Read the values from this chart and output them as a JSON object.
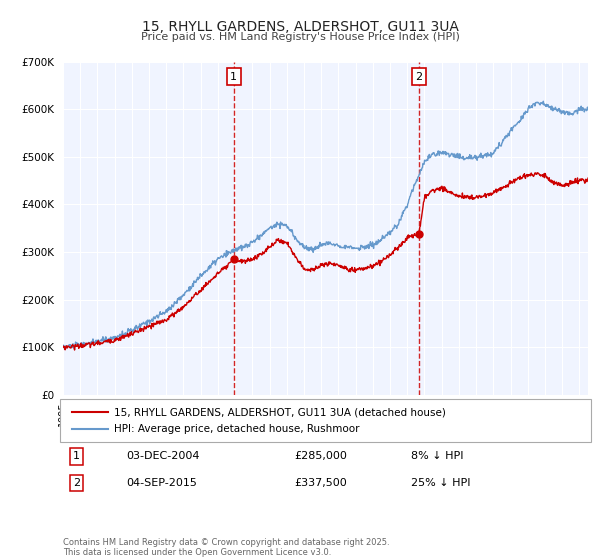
{
  "title": "15, RHYLL GARDENS, ALDERSHOT, GU11 3UA",
  "subtitle": "Price paid vs. HM Land Registry's House Price Index (HPI)",
  "legend_label_red": "15, RHYLL GARDENS, ALDERSHOT, GU11 3UA (detached house)",
  "legend_label_blue": "HPI: Average price, detached house, Rushmoor",
  "footer": "Contains HM Land Registry data © Crown copyright and database right 2025.\nThis data is licensed under the Open Government Licence v3.0.",
  "annotation1_label": "1",
  "annotation1_date": "03-DEC-2004",
  "annotation1_price": "£285,000",
  "annotation1_hpi": "8% ↓ HPI",
  "annotation2_label": "2",
  "annotation2_date": "04-SEP-2015",
  "annotation2_price": "£337,500",
  "annotation2_hpi": "25% ↓ HPI",
  "event1_x": 2004.92,
  "event1_y": 285000,
  "event2_x": 2015.67,
  "event2_y": 337500,
  "ylim": [
    0,
    700000
  ],
  "xlim": [
    1995,
    2025.5
  ],
  "yticks": [
    0,
    100000,
    200000,
    300000,
    400000,
    500000,
    600000,
    700000
  ],
  "ytick_labels": [
    "£0",
    "£100K",
    "£200K",
    "£300K",
    "£400K",
    "£500K",
    "£600K",
    "£700K"
  ],
  "red_color": "#cc0000",
  "blue_color": "#6699cc",
  "bg_color": "#f0f4ff",
  "grid_color": "#ffffff",
  "hpi_waypoints": [
    [
      1995.0,
      100000
    ],
    [
      1996.0,
      105000
    ],
    [
      1997.0,
      112000
    ],
    [
      1998.0,
      120000
    ],
    [
      1999.0,
      135000
    ],
    [
      2000.0,
      155000
    ],
    [
      2001.0,
      175000
    ],
    [
      2002.0,
      210000
    ],
    [
      2003.0,
      250000
    ],
    [
      2004.0,
      285000
    ],
    [
      2004.5,
      295000
    ],
    [
      2005.0,
      305000
    ],
    [
      2005.5,
      310000
    ],
    [
      2006.0,
      320000
    ],
    [
      2006.5,
      335000
    ],
    [
      2007.0,
      350000
    ],
    [
      2007.5,
      360000
    ],
    [
      2008.0,
      355000
    ],
    [
      2008.5,
      330000
    ],
    [
      2009.0,
      310000
    ],
    [
      2009.5,
      305000
    ],
    [
      2010.0,
      315000
    ],
    [
      2010.5,
      318000
    ],
    [
      2011.0,
      315000
    ],
    [
      2011.5,
      310000
    ],
    [
      2012.0,
      308000
    ],
    [
      2012.5,
      310000
    ],
    [
      2013.0,
      315000
    ],
    [
      2013.5,
      325000
    ],
    [
      2014.0,
      340000
    ],
    [
      2014.5,
      360000
    ],
    [
      2015.0,
      400000
    ],
    [
      2015.5,
      450000
    ],
    [
      2015.67,
      460000
    ],
    [
      2016.0,
      490000
    ],
    [
      2016.5,
      505000
    ],
    [
      2017.0,
      510000
    ],
    [
      2017.5,
      505000
    ],
    [
      2018.0,
      500000
    ],
    [
      2018.5,
      498000
    ],
    [
      2019.0,
      500000
    ],
    [
      2019.5,
      502000
    ],
    [
      2020.0,
      510000
    ],
    [
      2020.5,
      530000
    ],
    [
      2021.0,
      555000
    ],
    [
      2021.5,
      575000
    ],
    [
      2022.0,
      600000
    ],
    [
      2022.5,
      615000
    ],
    [
      2023.0,
      610000
    ],
    [
      2023.5,
      600000
    ],
    [
      2024.0,
      595000
    ],
    [
      2024.5,
      590000
    ],
    [
      2025.0,
      600000
    ],
    [
      2025.5,
      600000
    ]
  ],
  "red_waypoints": [
    [
      1995.0,
      100000
    ],
    [
      1996.0,
      103000
    ],
    [
      1997.0,
      108000
    ],
    [
      1998.0,
      115000
    ],
    [
      1999.0,
      128000
    ],
    [
      2000.0,
      143000
    ],
    [
      2001.0,
      158000
    ],
    [
      2002.0,
      185000
    ],
    [
      2003.0,
      220000
    ],
    [
      2004.0,
      255000
    ],
    [
      2004.5,
      268000
    ],
    [
      2004.92,
      285000
    ],
    [
      2005.0,
      283000
    ],
    [
      2005.5,
      280000
    ],
    [
      2006.0,
      285000
    ],
    [
      2006.5,
      295000
    ],
    [
      2007.0,
      310000
    ],
    [
      2007.5,
      325000
    ],
    [
      2008.0,
      320000
    ],
    [
      2008.5,
      290000
    ],
    [
      2009.0,
      265000
    ],
    [
      2009.5,
      262000
    ],
    [
      2010.0,
      272000
    ],
    [
      2010.5,
      276000
    ],
    [
      2011.0,
      272000
    ],
    [
      2011.5,
      265000
    ],
    [
      2012.0,
      262000
    ],
    [
      2012.5,
      265000
    ],
    [
      2013.0,
      270000
    ],
    [
      2013.5,
      280000
    ],
    [
      2014.0,
      295000
    ],
    [
      2014.5,
      310000
    ],
    [
      2015.0,
      330000
    ],
    [
      2015.67,
      337500
    ],
    [
      2016.0,
      415000
    ],
    [
      2016.5,
      430000
    ],
    [
      2017.0,
      435000
    ],
    [
      2017.5,
      425000
    ],
    [
      2018.0,
      418000
    ],
    [
      2018.5,
      415000
    ],
    [
      2019.0,
      416000
    ],
    [
      2019.5,
      418000
    ],
    [
      2020.0,
      425000
    ],
    [
      2020.5,
      435000
    ],
    [
      2021.0,
      445000
    ],
    [
      2021.5,
      455000
    ],
    [
      2022.0,
      460000
    ],
    [
      2022.5,
      465000
    ],
    [
      2023.0,
      460000
    ],
    [
      2023.5,
      445000
    ],
    [
      2024.0,
      440000
    ],
    [
      2024.5,
      445000
    ],
    [
      2025.0,
      450000
    ],
    [
      2025.5,
      450000
    ]
  ]
}
